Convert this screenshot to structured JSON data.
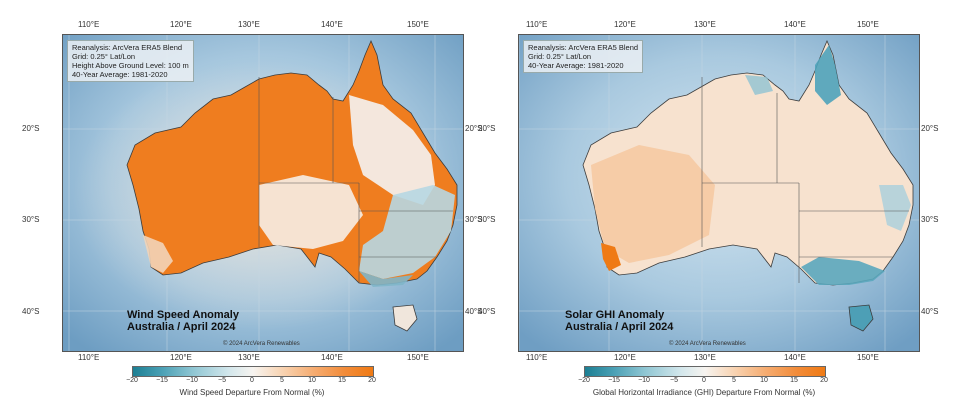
{
  "panels": [
    {
      "info_lines": [
        "Reanalysis: ArcVera ERA5 Blend",
        "Grid: 0.25° Lat/Lon",
        "Height Above Ground Level: 100 m",
        "40-Year Average: 1981-2020"
      ],
      "title_line1": "Wind Speed Anomaly",
      "title_line2": "Australia / April 2024",
      "copyright": "© 2024 ArcVera Renewables",
      "colorbar_title": "Wind Speed Departure From Normal (%)"
    },
    {
      "info_lines": [
        "Reanalysis: ArcVera ERA5 Blend",
        "Grid: 0.25° Lat/Lon",
        "40-Year Average: 1981-2020"
      ],
      "title_line1": "Solar GHI Anomaly",
      "title_line2": "Australia / April 2024",
      "copyright": "© 2024 ArcVera Renewables",
      "colorbar_title": "Global Horizontal Irradiance (GHI) Departure From Normal (%)"
    }
  ],
  "lon_ticks": [
    "110°E",
    "120°E",
    "130°E",
    "140°E",
    "150°E"
  ],
  "lat_ticks": [
    "20°S",
    "30°S",
    "40°S"
  ],
  "colorbar_ticks": [
    "−20",
    "−15",
    "−10",
    "−5",
    "0",
    "5",
    "10",
    "15",
    "20"
  ],
  "colorbar_range": [
    -20,
    20
  ],
  "colors": {
    "ocean": "#7aa7c9",
    "strong_positive": "#ef7a14",
    "neutral": "#f7f4f0",
    "strong_negative": "#1c7f93"
  }
}
